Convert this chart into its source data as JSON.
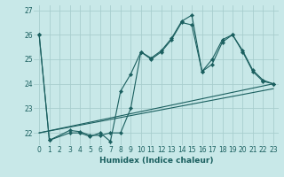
{
  "title": "",
  "xlabel": "Humidex (Indice chaleur)",
  "bg_color": "#c8e8e8",
  "line_color": "#1a5f5f",
  "grid_color": "#a8cece",
  "xlim": [
    -0.5,
    23.5
  ],
  "ylim": [
    21.5,
    27.2
  ],
  "yticks": [
    22,
    23,
    24,
    25,
    26,
    27
  ],
  "xticks": [
    0,
    1,
    2,
    3,
    4,
    5,
    6,
    7,
    8,
    9,
    10,
    11,
    12,
    13,
    14,
    15,
    16,
    17,
    18,
    19,
    20,
    21,
    22,
    23
  ],
  "series": [
    {
      "x": [
        0,
        1,
        3,
        4,
        5,
        6,
        7,
        8,
        9,
        10,
        11,
        12,
        13,
        14,
        15,
        16,
        17,
        18,
        19,
        20,
        21,
        22,
        23
      ],
      "y": [
        26,
        21.7,
        22.0,
        22.0,
        21.85,
        22.0,
        21.65,
        23.7,
        24.4,
        25.3,
        25.05,
        25.35,
        25.85,
        26.55,
        26.8,
        24.5,
        25.0,
        25.8,
        26.0,
        25.35,
        24.55,
        24.15,
        24.0
      ],
      "marker": true
    },
    {
      "x": [
        0,
        1,
        3,
        4,
        5,
        6,
        7,
        8,
        9,
        10,
        11,
        12,
        13,
        14,
        15,
        16,
        17,
        18,
        19,
        20,
        21,
        22,
        23
      ],
      "y": [
        26,
        21.7,
        22.1,
        22.05,
        21.9,
        21.9,
        22.0,
        22.0,
        23.0,
        25.3,
        25.0,
        25.3,
        25.8,
        26.5,
        26.4,
        24.5,
        24.8,
        25.7,
        26.0,
        25.3,
        24.5,
        24.1,
        24.0
      ],
      "marker": true
    },
    {
      "x": [
        0,
        23
      ],
      "y": [
        22.0,
        23.8
      ],
      "marker": false
    },
    {
      "x": [
        0,
        23
      ],
      "y": [
        22.0,
        24.0
      ],
      "marker": false
    }
  ]
}
